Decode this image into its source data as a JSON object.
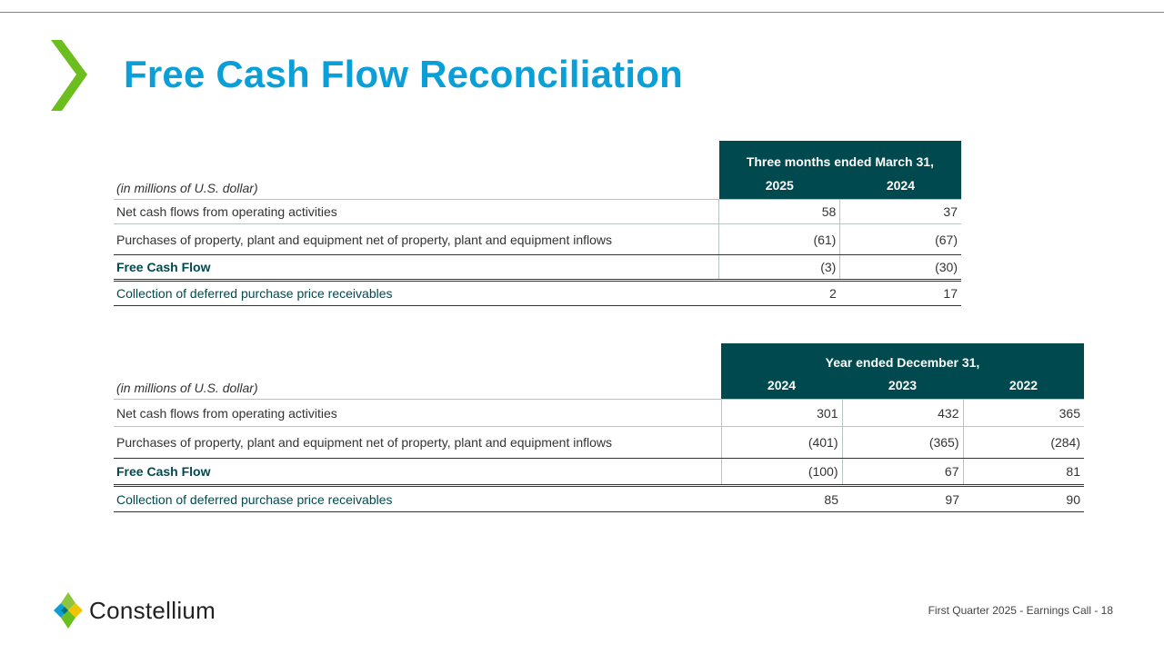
{
  "title": "Free Cash Flow Reconciliation",
  "table1": {
    "units": "(in millions of U.S. dollar)",
    "group_header": "Three months ended March 31,",
    "columns": [
      "2025",
      "2024"
    ],
    "rows": [
      {
        "label": "Net cash flows from operating activities",
        "values": [
          "58",
          "37"
        ]
      },
      {
        "label": "Purchases of property, plant and equipment net of property, plant and equipment inflows",
        "values": [
          "(61)",
          "(67)"
        ]
      },
      {
        "label": "Free Cash Flow",
        "values": [
          "(3)",
          "(30)"
        ]
      },
      {
        "label": "Collection of deferred purchase price receivables",
        "values": [
          "2",
          "17"
        ]
      }
    ]
  },
  "table2": {
    "units": "(in millions of U.S. dollar)",
    "group_header": "Year ended December 31,",
    "columns": [
      "2024",
      "2023",
      "2022"
    ],
    "rows": [
      {
        "label": "Net cash flows from operating activities",
        "values": [
          "301",
          "432",
          "365"
        ]
      },
      {
        "label": "Purchases of property, plant and equipment net of property, plant and equipment inflows",
        "values": [
          "(401)",
          "(365)",
          "(284)"
        ]
      },
      {
        "label": "Free Cash Flow",
        "values": [
          "(100)",
          "67",
          "81"
        ]
      },
      {
        "label": "Collection of deferred purchase price receivables",
        "values": [
          "85",
          "97",
          "90"
        ]
      }
    ]
  },
  "footer": {
    "text": "First Quarter 2025 -  Earnings Call - 18"
  },
  "logo": {
    "name": "Constellium"
  },
  "colors": {
    "title": "#0a9fd6",
    "header_bg": "#004a4f",
    "chevron": "#6cbe1e",
    "rule": "#2aa6b4"
  },
  "icons": [
    "chevron-right-icon",
    "constellium-logo-mark"
  ]
}
